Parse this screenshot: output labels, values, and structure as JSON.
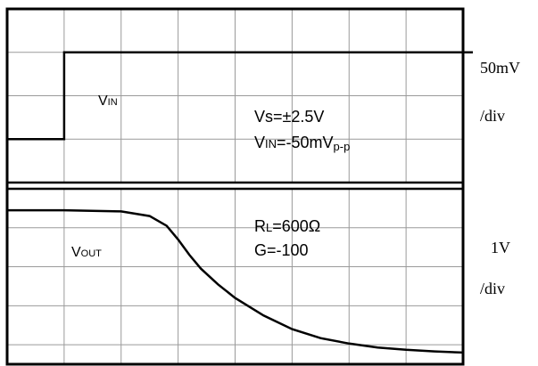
{
  "chart_data": [
    {
      "type": "line",
      "panel": "top",
      "title": "",
      "xlabel": "",
      "ylabel": "",
      "grid": true,
      "series": [
        {
          "label_main": "V",
          "label_sub": "IN",
          "x": [
            0,
            1.0,
            1.0,
            8.0
          ],
          "y": [
            -1.0,
            -1.0,
            1.0,
            1.0
          ]
        }
      ],
      "xlim": [
        0,
        8
      ],
      "ylim": [
        -2,
        2
      ],
      "scale_unit": "50mV",
      "scale_per": "/div",
      "annotations": [
        {
          "parts": [
            {
              "text": "Vs=±2.5V",
              "sub": false
            }
          ]
        },
        {
          "parts": [
            {
              "text": "V",
              "sub": false
            },
            {
              "text": "IN",
              "sub": true
            },
            {
              "text": "=-50mV",
              "sub": false
            },
            {
              "text": "p-p",
              "sub": true
            }
          ]
        }
      ]
    },
    {
      "type": "line",
      "panel": "bottom",
      "title": "",
      "xlabel": "",
      "ylabel": "",
      "grid": true,
      "series": [
        {
          "label_main": "V",
          "label_sub": "OUT",
          "x": [
            0,
            1.0,
            2.0,
            2.5,
            2.8,
            3.0,
            3.2,
            3.4,
            3.7,
            4.0,
            4.5,
            5.0,
            5.5,
            6.0,
            6.5,
            7.0,
            7.5,
            8.0
          ],
          "y": [
            1.45,
            1.45,
            1.42,
            1.3,
            1.05,
            0.7,
            0.3,
            -0.05,
            -0.45,
            -0.8,
            -1.25,
            -1.6,
            -1.83,
            -1.97,
            -2.07,
            -2.13,
            -2.17,
            -2.2
          ]
        }
      ],
      "xlim": [
        0,
        8
      ],
      "ylim": [
        -2.5,
        2.0
      ],
      "scale_unit": "1V",
      "scale_per": "/div",
      "annotations": [
        {
          "parts": [
            {
              "text": "R",
              "sub": false
            },
            {
              "text": "L",
              "sub": true
            },
            {
              "text": "=600Ω",
              "sub": false
            }
          ]
        },
        {
          "parts": [
            {
              "text": "G=-100",
              "sub": false
            }
          ]
        }
      ]
    }
  ]
}
